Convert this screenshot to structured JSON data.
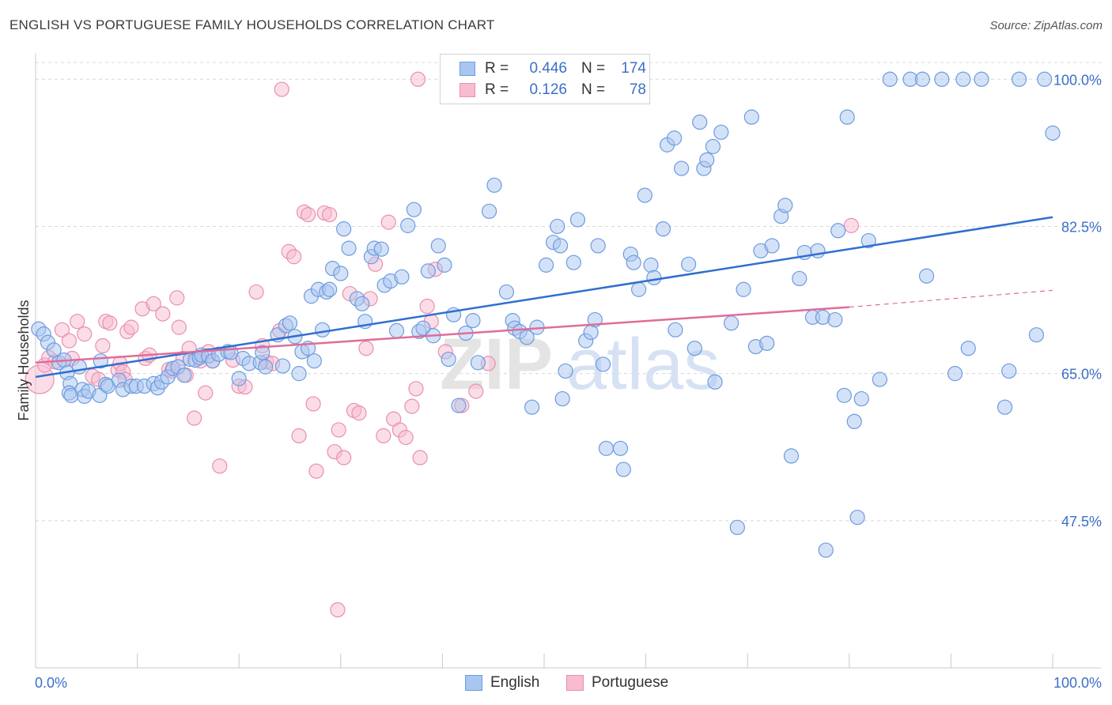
{
  "title": "ENGLISH VS PORTUGUESE FAMILY HOUSEHOLDS CORRELATION CHART",
  "source": "Source: ZipAtlas.com",
  "watermark": {
    "part1": "ZIP",
    "part2": "atlas"
  },
  "legend": {
    "rows": [
      {
        "r_label": "R =",
        "r_value": "0.446",
        "n_label": "N =",
        "n_value": "174"
      },
      {
        "r_label": "R =",
        "r_value": "0.126",
        "n_label": "N =",
        "n_value": "78"
      }
    ]
  },
  "bottom_legend": {
    "english": "English",
    "portuguese": "Portuguese"
  },
  "colors": {
    "english_fill": "#a9c6f0",
    "english_stroke": "#6d9be0",
    "english_line": "#2f6fd0",
    "portuguese_fill": "#f7bcd0",
    "portuguese_stroke": "#e98fb0",
    "portuguese_line": "#e06c9a",
    "axis_text": "#3b6fc8",
    "grid": "#d8d8d8"
  },
  "chart_data": {
    "type": "scatter",
    "title": "ENGLISH VS PORTUGUESE FAMILY HOUSEHOLDS CORRELATION CHART",
    "xlabel": "",
    "ylabel": "Family Households",
    "xlim": [
      0,
      100
    ],
    "ylim": [
      30,
      102
    ],
    "x_tick_labels": [
      "0.0%",
      "100.0%"
    ],
    "y_ticks": [
      47.5,
      65.0,
      82.5,
      100.0
    ],
    "y_tick_labels": [
      "47.5%",
      "65.0%",
      "82.5%",
      "100.0%"
    ],
    "series": [
      {
        "name": "English",
        "R": 0.446,
        "N": 174,
        "trend": {
          "x0": 0,
          "y0": 64.6,
          "x1": 100,
          "y1": 83.6
        },
        "points": [
          [
            0.3,
            70.3
          ],
          [
            0.8,
            69.7
          ],
          [
            1.2,
            68.7
          ],
          [
            1.8,
            67.8
          ],
          [
            2.3,
            66.3
          ],
          [
            2.8,
            66.6
          ],
          [
            3.1,
            65.1
          ],
          [
            3.4,
            63.8
          ],
          [
            3.3,
            62.7
          ],
          [
            3.5,
            62.4
          ],
          [
            4.3,
            65.8
          ],
          [
            4.6,
            63.1
          ],
          [
            4.8,
            62.3
          ],
          [
            5.2,
            62.9
          ],
          [
            6.3,
            62.4
          ],
          [
            6.4,
            66.5
          ],
          [
            6.9,
            63.7
          ],
          [
            7.1,
            63.5
          ],
          [
            8.2,
            64.2
          ],
          [
            8.6,
            63.1
          ],
          [
            9.4,
            63.5
          ],
          [
            9.9,
            63.5
          ],
          [
            10.7,
            63.5
          ],
          [
            11.6,
            63.8
          ],
          [
            12.0,
            63.3
          ],
          [
            12.4,
            64.0
          ],
          [
            13.0,
            64.6
          ],
          [
            13.5,
            65.6
          ],
          [
            14.0,
            65.8
          ],
          [
            14.6,
            64.8
          ],
          [
            15.2,
            66.7
          ],
          [
            15.7,
            66.6
          ],
          [
            16.1,
            66.9
          ],
          [
            16.3,
            67.2
          ],
          [
            17.0,
            67.1
          ],
          [
            17.4,
            66.5
          ],
          [
            18.0,
            67.3
          ],
          [
            18.9,
            67.6
          ],
          [
            19.2,
            67.5
          ],
          [
            20.0,
            64.4
          ],
          [
            20.4,
            66.8
          ],
          [
            21.0,
            66.2
          ],
          [
            22.1,
            66.3
          ],
          [
            22.3,
            67.5
          ],
          [
            22.6,
            65.8
          ],
          [
            23.8,
            69.6
          ],
          [
            24.3,
            65.9
          ],
          [
            24.6,
            70.7
          ],
          [
            25.0,
            71.0
          ],
          [
            25.5,
            69.4
          ],
          [
            25.9,
            65.0
          ],
          [
            26.2,
            67.6
          ],
          [
            26.8,
            68.0
          ],
          [
            27.1,
            74.2
          ],
          [
            27.4,
            66.5
          ],
          [
            27.8,
            75.0
          ],
          [
            28.2,
            70.2
          ],
          [
            28.6,
            74.7
          ],
          [
            28.9,
            75.0
          ],
          [
            29.2,
            77.5
          ],
          [
            30.0,
            76.9
          ],
          [
            30.3,
            82.2
          ],
          [
            30.8,
            79.9
          ],
          [
            31.6,
            73.9
          ],
          [
            32.1,
            73.3
          ],
          [
            32.4,
            71.2
          ],
          [
            33.0,
            78.9
          ],
          [
            33.3,
            79.9
          ],
          [
            34.0,
            79.8
          ],
          [
            34.3,
            75.5
          ],
          [
            34.9,
            76.0
          ],
          [
            35.5,
            70.1
          ],
          [
            36.0,
            76.5
          ],
          [
            36.6,
            82.6
          ],
          [
            37.2,
            84.5
          ],
          [
            37.7,
            70.0
          ],
          [
            38.1,
            70.4
          ],
          [
            38.6,
            77.2
          ],
          [
            39.1,
            69.5
          ],
          [
            39.6,
            80.2
          ],
          [
            40.2,
            77.9
          ],
          [
            40.6,
            66.7
          ],
          [
            41.1,
            72.0
          ],
          [
            41.6,
            61.2
          ],
          [
            42.3,
            69.8
          ],
          [
            43.0,
            71.3
          ],
          [
            43.5,
            66.3
          ],
          [
            44.6,
            84.3
          ],
          [
            45.1,
            87.4
          ],
          [
            46.3,
            74.7
          ],
          [
            46.9,
            71.3
          ],
          [
            47.1,
            70.4
          ],
          [
            47.6,
            70.0
          ],
          [
            48.3,
            69.3
          ],
          [
            48.8,
            61.0
          ],
          [
            49.3,
            70.5
          ],
          [
            50.2,
            77.9
          ],
          [
            50.9,
            80.6
          ],
          [
            51.3,
            82.5
          ],
          [
            51.6,
            80.2
          ],
          [
            51.8,
            62.0
          ],
          [
            52.1,
            65.3
          ],
          [
            52.9,
            78.2
          ],
          [
            53.3,
            83.3
          ],
          [
            54.1,
            68.9
          ],
          [
            54.6,
            69.9
          ],
          [
            55.0,
            71.4
          ],
          [
            55.3,
            80.2
          ],
          [
            55.8,
            66.1
          ],
          [
            56.1,
            56.1
          ],
          [
            57.5,
            56.1
          ],
          [
            57.8,
            53.6
          ],
          [
            58.5,
            79.2
          ],
          [
            58.8,
            78.2
          ],
          [
            59.3,
            75.0
          ],
          [
            59.9,
            86.2
          ],
          [
            60.5,
            77.9
          ],
          [
            60.8,
            76.4
          ],
          [
            61.7,
            82.2
          ],
          [
            62.1,
            92.2
          ],
          [
            62.8,
            93.0
          ],
          [
            62.9,
            70.2
          ],
          [
            63.5,
            89.4
          ],
          [
            64.2,
            78.0
          ],
          [
            64.8,
            68.0
          ],
          [
            65.3,
            94.9
          ],
          [
            65.7,
            89.4
          ],
          [
            66.0,
            90.4
          ],
          [
            66.6,
            92.0
          ],
          [
            66.8,
            64.0
          ],
          [
            67.4,
            93.7
          ],
          [
            68.4,
            71.0
          ],
          [
            69.0,
            46.7
          ],
          [
            69.6,
            75.0
          ],
          [
            70.4,
            95.5
          ],
          [
            70.8,
            68.2
          ],
          [
            71.3,
            79.6
          ],
          [
            71.9,
            68.6
          ],
          [
            72.4,
            80.2
          ],
          [
            73.3,
            83.7
          ],
          [
            73.7,
            85.0
          ],
          [
            74.3,
            55.2
          ],
          [
            75.1,
            76.3
          ],
          [
            75.6,
            79.4
          ],
          [
            76.4,
            71.7
          ],
          [
            76.9,
            79.6
          ],
          [
            77.4,
            71.7
          ],
          [
            77.7,
            44.0
          ],
          [
            78.6,
            71.4
          ],
          [
            78.9,
            82.0
          ],
          [
            79.5,
            62.4
          ],
          [
            79.8,
            95.5
          ],
          [
            80.5,
            59.3
          ],
          [
            80.8,
            47.9
          ],
          [
            81.2,
            62.0
          ],
          [
            81.9,
            80.8
          ],
          [
            83.0,
            64.3
          ],
          [
            84.0,
            100.0
          ],
          [
            86.0,
            100.0
          ],
          [
            87.2,
            100.0
          ],
          [
            87.6,
            76.6
          ],
          [
            89.1,
            100.0
          ],
          [
            90.4,
            65.0
          ],
          [
            91.2,
            100.0
          ],
          [
            91.7,
            68.0
          ],
          [
            93.0,
            100.0
          ],
          [
            95.3,
            61.0
          ],
          [
            95.7,
            65.3
          ],
          [
            96.7,
            100.0
          ],
          [
            98.4,
            69.6
          ],
          [
            99.2,
            100.0
          ],
          [
            100.0,
            93.6
          ]
        ]
      },
      {
        "name": "Portuguese",
        "R": 0.126,
        "N": 78,
        "trend": {
          "x0": 0,
          "y0": 66.3,
          "x1": 80,
          "y1": 72.9
        },
        "trend_dashed": {
          "x0": 80,
          "y0": 72.9,
          "x1": 100,
          "y1": 74.9
        },
        "points": [
          [
            0.4,
            64.3
          ],
          [
            0.9,
            66.0
          ],
          [
            1.3,
            66.9
          ],
          [
            1.9,
            66.4
          ],
          [
            2.6,
            70.2
          ],
          [
            3.3,
            68.9
          ],
          [
            3.6,
            66.8
          ],
          [
            4.1,
            71.2
          ],
          [
            4.8,
            69.7
          ],
          [
            5.6,
            64.7
          ],
          [
            6.2,
            64.3
          ],
          [
            6.6,
            68.3
          ],
          [
            6.9,
            71.2
          ],
          [
            7.3,
            71.0
          ],
          [
            8.1,
            65.4
          ],
          [
            8.3,
            66.2
          ],
          [
            8.6,
            65.2
          ],
          [
            8.8,
            64.3
          ],
          [
            9.0,
            70.0
          ],
          [
            9.4,
            70.5
          ],
          [
            10.5,
            72.7
          ],
          [
            10.8,
            66.8
          ],
          [
            11.2,
            67.2
          ],
          [
            11.6,
            73.3
          ],
          [
            12.5,
            72.1
          ],
          [
            13.1,
            65.5
          ],
          [
            13.4,
            65.3
          ],
          [
            13.9,
            74.0
          ],
          [
            14.1,
            70.5
          ],
          [
            14.5,
            66.8
          ],
          [
            14.8,
            64.8
          ],
          [
            15.1,
            68.0
          ],
          [
            15.6,
            59.7
          ],
          [
            16.2,
            66.5
          ],
          [
            16.7,
            62.7
          ],
          [
            17.0,
            67.6
          ],
          [
            17.4,
            66.5
          ],
          [
            18.1,
            54.0
          ],
          [
            19.4,
            66.6
          ],
          [
            20.0,
            63.5
          ],
          [
            20.6,
            63.4
          ],
          [
            21.7,
            74.7
          ],
          [
            22.3,
            68.3
          ],
          [
            22.7,
            66.4
          ],
          [
            23.3,
            66.2
          ],
          [
            24.0,
            70.1
          ],
          [
            24.9,
            79.5
          ],
          [
            25.4,
            78.9
          ],
          [
            25.9,
            57.6
          ],
          [
            26.4,
            84.2
          ],
          [
            26.8,
            83.9
          ],
          [
            27.3,
            61.4
          ],
          [
            27.6,
            53.4
          ],
          [
            28.4,
            84.1
          ],
          [
            28.9,
            83.9
          ],
          [
            29.4,
            55.7
          ],
          [
            29.8,
            58.3
          ],
          [
            30.3,
            55.0
          ],
          [
            30.9,
            74.5
          ],
          [
            31.3,
            60.6
          ],
          [
            31.8,
            60.3
          ],
          [
            32.5,
            68.0
          ],
          [
            32.9,
            73.9
          ],
          [
            33.4,
            78.0
          ],
          [
            34.2,
            57.6
          ],
          [
            34.7,
            83.0
          ],
          [
            35.2,
            59.6
          ],
          [
            35.8,
            58.3
          ],
          [
            36.4,
            57.4
          ],
          [
            37.0,
            61.1
          ],
          [
            37.4,
            63.2
          ],
          [
            37.8,
            55.0
          ],
          [
            38.5,
            73.0
          ],
          [
            38.9,
            71.2
          ],
          [
            39.3,
            77.4
          ],
          [
            40.3,
            67.6
          ],
          [
            41.9,
            61.2
          ],
          [
            43.3,
            62.9
          ],
          [
            44.5,
            66.2
          ],
          [
            80.2,
            82.6
          ],
          [
            24.2,
            98.8
          ],
          [
            37.6,
            100.0
          ],
          [
            29.7,
            36.9
          ]
        ]
      }
    ]
  }
}
